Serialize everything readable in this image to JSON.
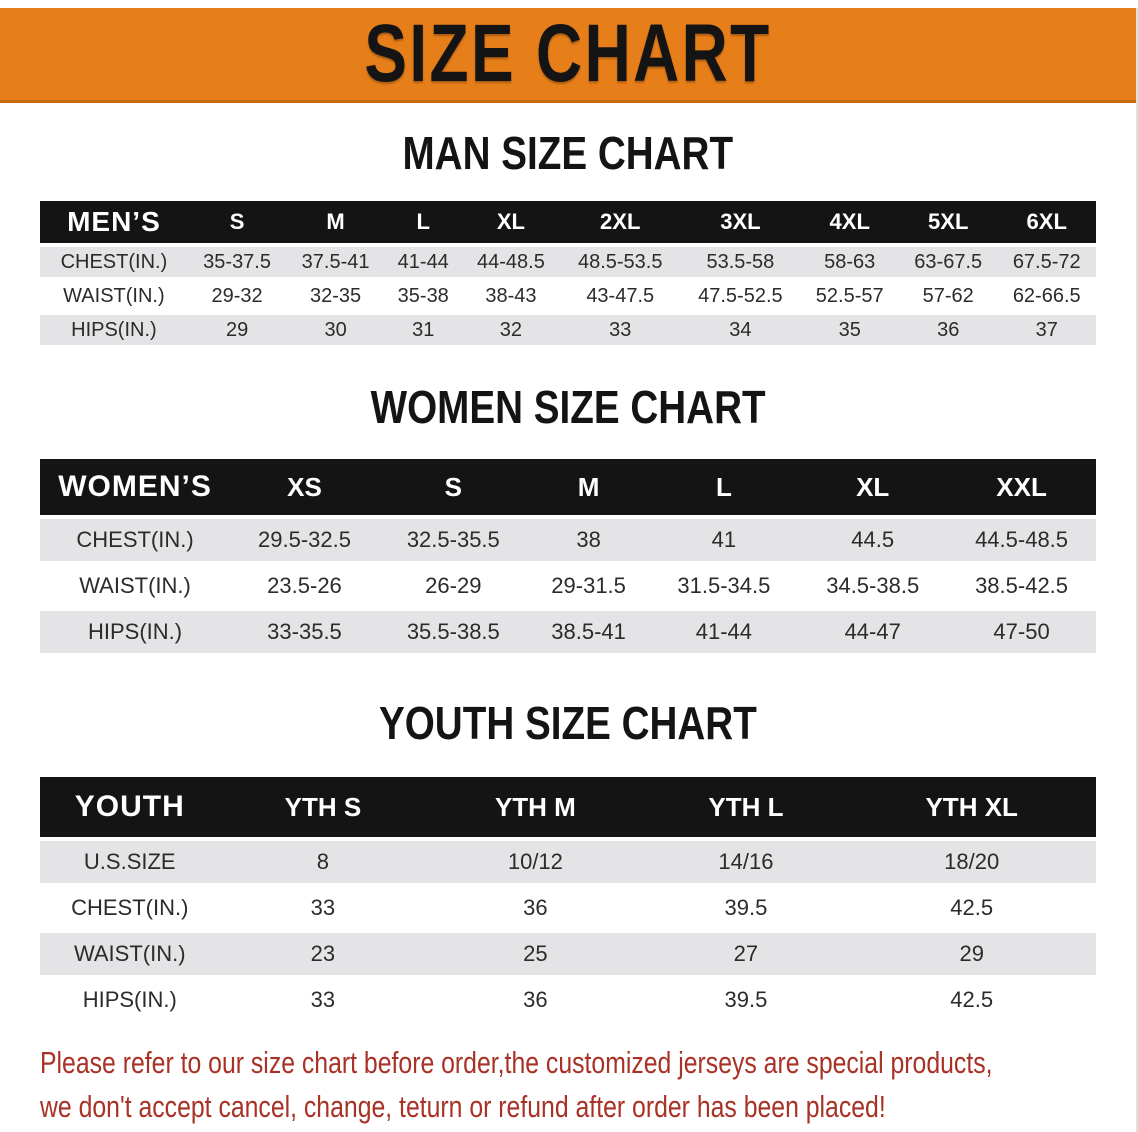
{
  "banner": {
    "title": "SIZE CHART"
  },
  "sections": [
    {
      "title": "MAN SIZE CHART",
      "header_label": "MEN’S",
      "columns": [
        "S",
        "M",
        "L",
        "XL",
        "2XL",
        "3XL",
        "4XL",
        "5XL",
        "6XL"
      ],
      "rows": [
        {
          "label": "CHEST(IN.)",
          "values": [
            "35-37.5",
            "37.5-41",
            "41-44",
            "44-48.5",
            "48.5-53.5",
            "53.5-58",
            "58-63",
            "63-67.5",
            "67.5-72"
          ]
        },
        {
          "label": "WAIST(IN.)",
          "values": [
            "29-32",
            "32-35",
            "35-38",
            "38-43",
            "43-47.5",
            "47.5-52.5",
            "52.5-57",
            "57-62",
            "62-66.5"
          ]
        },
        {
          "label": "HIPS(IN.)",
          "values": [
            "29",
            "30",
            "31",
            "32",
            "33",
            "34",
            "35",
            "36",
            "37"
          ]
        }
      ]
    },
    {
      "title": "WOMEN SIZE CHART",
      "header_label": "WOMEN’S",
      "columns": [
        "XS",
        "S",
        "M",
        "L",
        "XL",
        "XXL"
      ],
      "rows": [
        {
          "label": "CHEST(IN.)",
          "values": [
            "29.5-32.5",
            "32.5-35.5",
            "38",
            "41",
            "44.5",
            "44.5-48.5"
          ]
        },
        {
          "label": "WAIST(IN.)",
          "values": [
            "23.5-26",
            "26-29",
            "29-31.5",
            "31.5-34.5",
            "34.5-38.5",
            "38.5-42.5"
          ]
        },
        {
          "label": "HIPS(IN.)",
          "values": [
            "33-35.5",
            "35.5-38.5",
            "38.5-41",
            "41-44",
            "44-47",
            "47-50"
          ]
        }
      ]
    },
    {
      "title": "YOUTH SIZE CHART",
      "header_label": "YOUTH",
      "columns": [
        "YTH S",
        "YTH M",
        "YTH L",
        "YTH XL"
      ],
      "rows": [
        {
          "label": "U.S.SIZE",
          "values": [
            "8",
            "10/12",
            "14/16",
            "18/20"
          ]
        },
        {
          "label": "CHEST(IN.)",
          "values": [
            "33",
            "36",
            "39.5",
            "42.5"
          ]
        },
        {
          "label": "WAIST(IN.)",
          "values": [
            "23",
            "25",
            "27",
            "29"
          ]
        },
        {
          "label": "HIPS(IN.)",
          "values": [
            "33",
            "36",
            "39.5",
            "42.5"
          ]
        }
      ]
    }
  ],
  "disclaimer": {
    "line1": "Please refer to our size chart before order,the customized jerseys are special products,",
    "line2": "we don't accept cancel, change, teturn or refund after order has been placed!"
  },
  "colors": {
    "banner_bg": "#E67E1A",
    "banner_edge": "#C96A10",
    "header_bar_bg": "#141414",
    "header_bar_text": "#FFFFFF",
    "row_alt_bg": "#E4E4E6",
    "row_bg": "#FFFFFF",
    "title_text": "#141414",
    "value_text": "#2B2B2B",
    "disclaimer_text": "#A93226"
  }
}
